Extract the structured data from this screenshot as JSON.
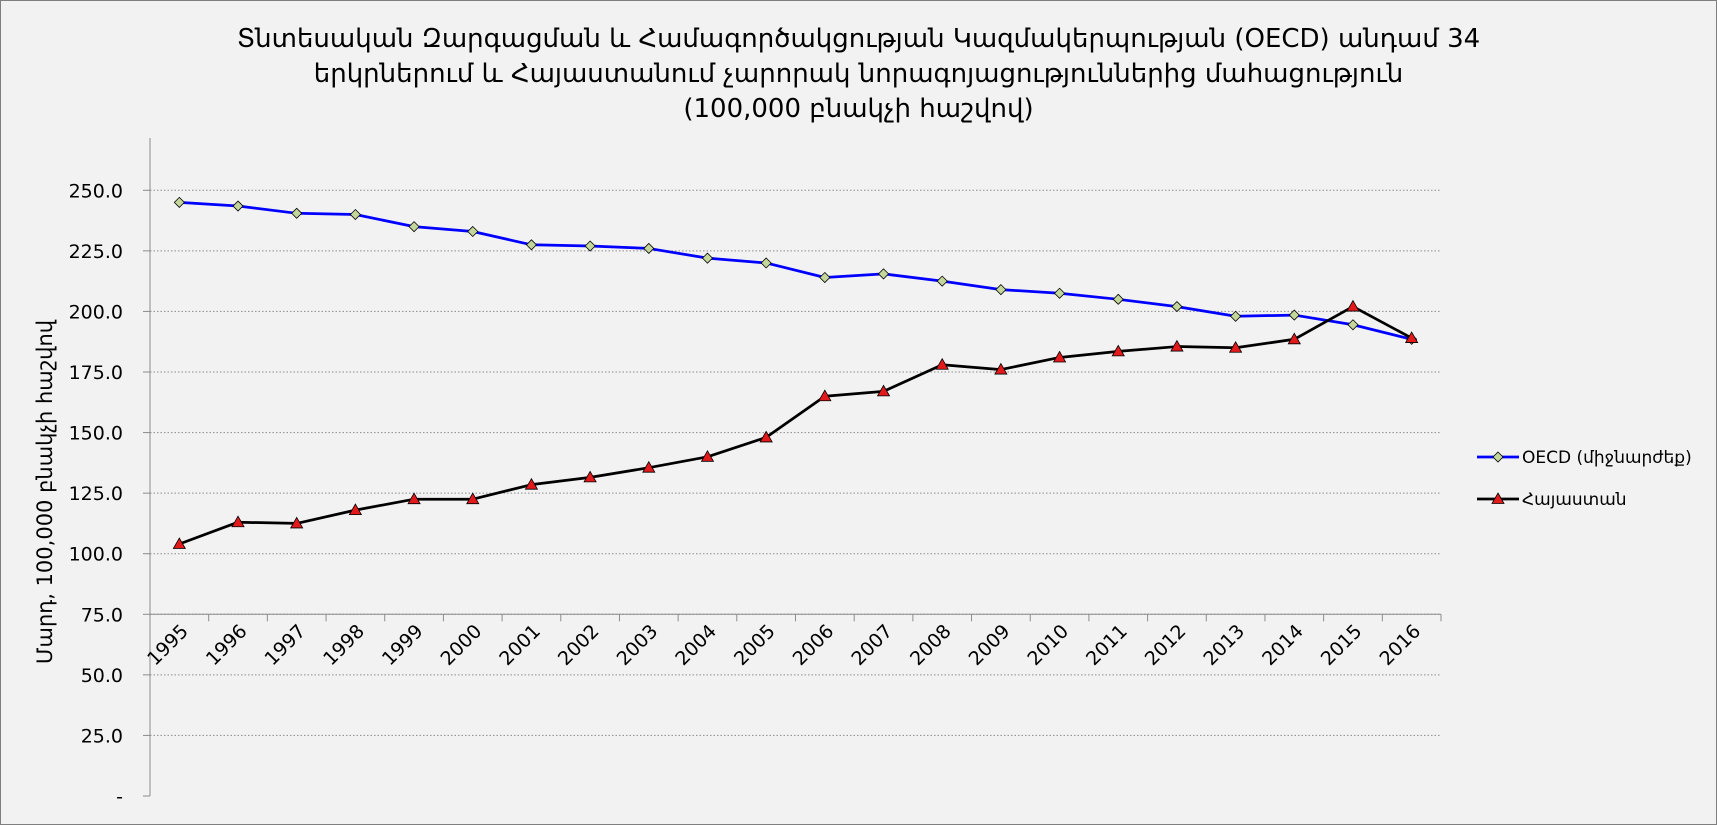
{
  "chart_data": {
    "type": "line",
    "title_lines": [
      "Տնտեսական Զարգացման և Համագործակցության Կազմակերպության (OECD) անդամ 34",
      "երկրներում և Հայաստանում չարորակ նորագոյացություններից մահացություն",
      "(100,000 բնակչի հաշվով)"
    ],
    "ylabel": "Մարդ, 100,000 բնակչի հաշվով",
    "xlabel": "",
    "x": [
      "1995",
      "1996",
      "1997",
      "1998",
      "1999",
      "2000",
      "2001",
      "2002",
      "2003",
      "2004",
      "2005",
      "2006",
      "2007",
      "2008",
      "2009",
      "2010",
      "2011",
      "2012",
      "2013",
      "2014",
      "2015",
      "2016"
    ],
    "y_ticks": [
      "-",
      "25.0",
      "50.0",
      "75.0",
      "100.0",
      "125.0",
      "150.0",
      "175.0",
      "200.0",
      "225.0",
      "250.0"
    ],
    "ylim": [
      0,
      262.5
    ],
    "grid": true,
    "legend_position": "right",
    "series": [
      {
        "name": "OECD (միջնարժեք)",
        "color": "#0000ff",
        "marker": "diamond",
        "marker_color": "#c3d69b",
        "values": [
          245.0,
          243.5,
          240.5,
          240.0,
          235.0,
          233.0,
          227.5,
          227.0,
          226.0,
          222.0,
          220.0,
          214.0,
          215.5,
          212.5,
          209.0,
          207.5,
          205.0,
          202.0,
          198.0,
          198.5,
          194.5,
          188.5
        ]
      },
      {
        "name": "Հայաստան",
        "color": "#000000",
        "marker": "triangle",
        "marker_color": "#e31a1c",
        "values": [
          104.0,
          113.0,
          112.5,
          118.0,
          122.5,
          122.5,
          128.5,
          131.5,
          135.5,
          140.0,
          148.0,
          165.0,
          167.0,
          178.0,
          176.0,
          181.0,
          183.5,
          185.5,
          185.0,
          188.5,
          202.0,
          189.0
        ]
      }
    ]
  }
}
